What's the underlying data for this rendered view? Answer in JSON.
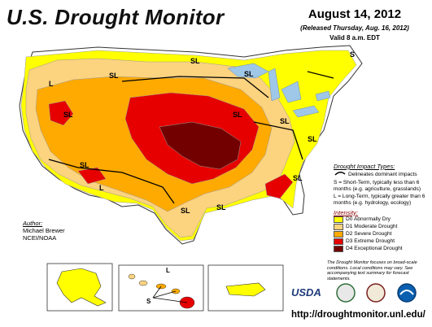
{
  "header": {
    "title": "U.S. Drought Monitor",
    "date": "August 14, 2012",
    "released": "(Released Thursday, Aug. 16, 2012)",
    "valid": "Valid 8 a.m. EDT"
  },
  "author": {
    "heading": "Author:",
    "name": "Michael Brewer",
    "org": "NCEI/NOAA"
  },
  "legend": {
    "impact_heading": "Drought Impact Types:",
    "impact_line": "Delineates dominant impacts",
    "s_text": "S = Short-Term, typically less than 6 months (e.g. agriculture, grasslands)",
    "l_text": "L = Long-Term, typically greater than 6 months (e.g. hydrology, ecology)",
    "intensity_heading": "Intensity:",
    "levels": [
      {
        "label": "D0 Abnormally Dry",
        "color": "#ffff00"
      },
      {
        "label": "D1 Moderate Drought",
        "color": "#fcd37f"
      },
      {
        "label": "D2 Severe Drought",
        "color": "#ffaa00"
      },
      {
        "label": "D3 Extreme Drought",
        "color": "#e60000"
      },
      {
        "label": "D4 Exceptional Drought",
        "color": "#730000"
      }
    ]
  },
  "note": "The Drought Monitor focuses on broad-scale conditions. Local conditions may vary. See accompanying text summary for forecast statements.",
  "logos": {
    "usda": "USDA"
  },
  "url": "http://droughtmonitor.unl.edu/",
  "map_labels": {
    "sl": "SL",
    "s": "S",
    "l": "L"
  }
}
